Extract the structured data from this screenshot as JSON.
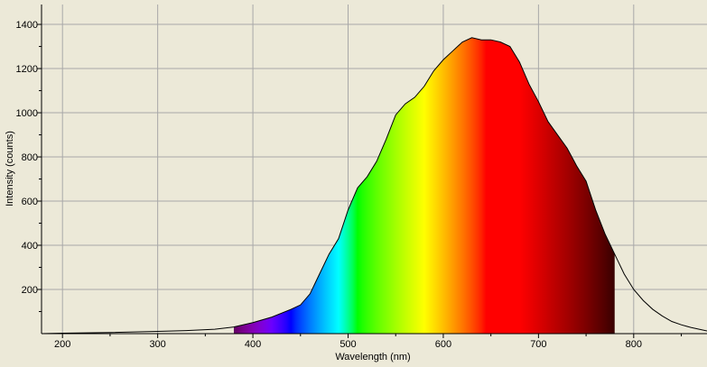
{
  "chart_data": {
    "type": "area",
    "title": "",
    "xlabel": "Wavelength (nm)",
    "ylabel": "Intensity (counts)",
    "xlim": [
      178,
      877
    ],
    "ylim": [
      0,
      1490
    ],
    "x_ticks": [
      200,
      300,
      400,
      500,
      600,
      700,
      800
    ],
    "y_ticks": [
      200,
      400,
      600,
      800,
      1000,
      1200,
      1400
    ],
    "grid": true,
    "fill_color_range_nm": [
      380,
      780
    ],
    "series": [
      {
        "x": [
          178,
          200,
          250,
          300,
          330,
          360,
          380,
          400,
          420,
          440,
          450,
          460,
          470,
          480,
          490,
          500,
          510,
          520,
          530,
          540,
          550,
          560,
          570,
          580,
          590,
          600,
          610,
          620,
          630,
          640,
          650,
          660,
          670,
          680,
          690,
          700,
          710,
          720,
          730,
          740,
          750,
          760,
          770,
          780,
          790,
          800,
          810,
          820,
          830,
          840,
          850,
          860,
          877
        ],
        "y": [
          0,
          2,
          5,
          10,
          14,
          20,
          30,
          50,
          75,
          110,
          130,
          180,
          270,
          360,
          430,
          560,
          660,
          710,
          780,
          880,
          990,
          1040,
          1070,
          1120,
          1190,
          1240,
          1280,
          1320,
          1340,
          1330,
          1330,
          1320,
          1300,
          1230,
          1130,
          1050,
          960,
          900,
          840,
          760,
          690,
          560,
          450,
          360,
          270,
          200,
          150,
          110,
          80,
          55,
          40,
          28,
          12
        ]
      }
    ]
  }
}
